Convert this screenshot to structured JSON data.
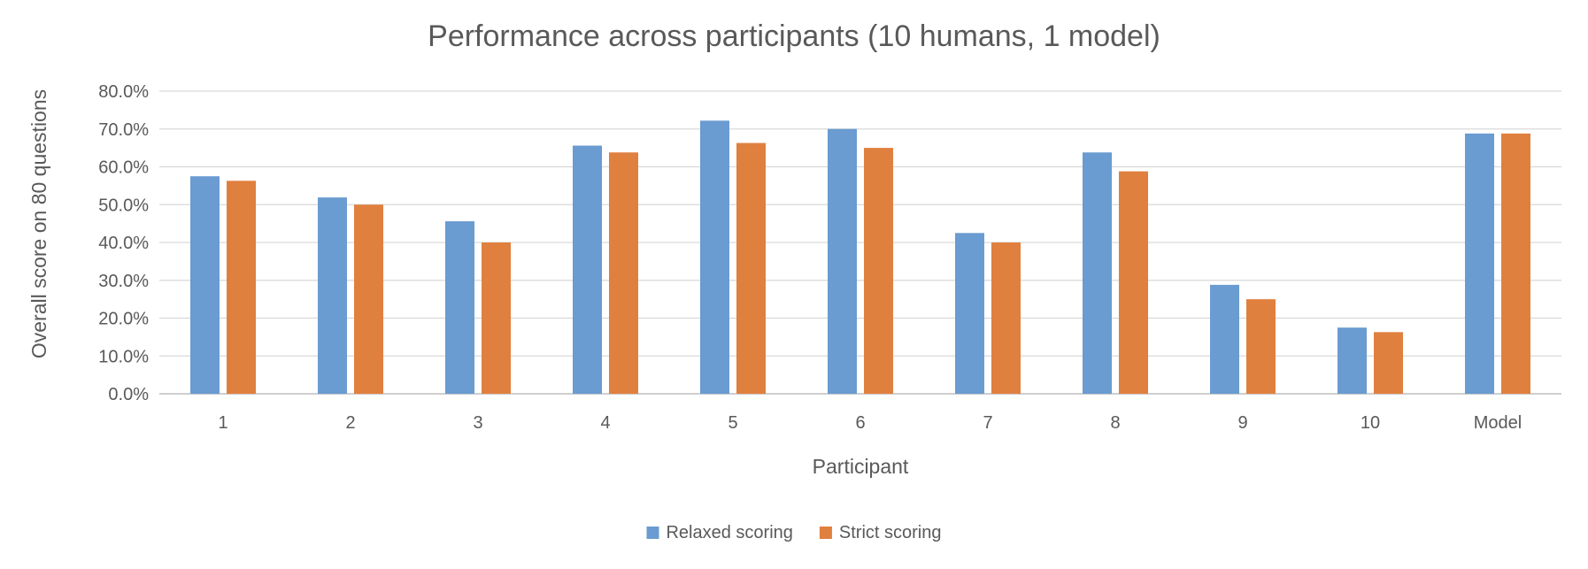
{
  "chart_data": {
    "type": "bar",
    "title": "Performance across participants (10 humans, 1 model)",
    "xlabel": "Participant",
    "ylabel": "Overall score on 80 questions",
    "categories": [
      "1",
      "2",
      "3",
      "4",
      "5",
      "6",
      "7",
      "8",
      "9",
      "10",
      "Model"
    ],
    "series": [
      {
        "name": "Relaxed scoring",
        "color": "#6a9bd1",
        "values": [
          0.575,
          0.519,
          0.456,
          0.656,
          0.722,
          0.7,
          0.425,
          0.638,
          0.288,
          0.175,
          0.688
        ]
      },
      {
        "name": "Strict scoring",
        "color": "#e0803f",
        "values": [
          0.563,
          0.5,
          0.4,
          0.638,
          0.663,
          0.65,
          0.4,
          0.588,
          0.25,
          0.163,
          0.688
        ]
      }
    ],
    "ylim": [
      0,
      0.8
    ],
    "yticks": [
      "0.0%",
      "10.0%",
      "20.0%",
      "30.0%",
      "40.0%",
      "50.0%",
      "60.0%",
      "70.0%",
      "80.0%"
    ],
    "grid": true,
    "legend_position": "bottom-center"
  }
}
